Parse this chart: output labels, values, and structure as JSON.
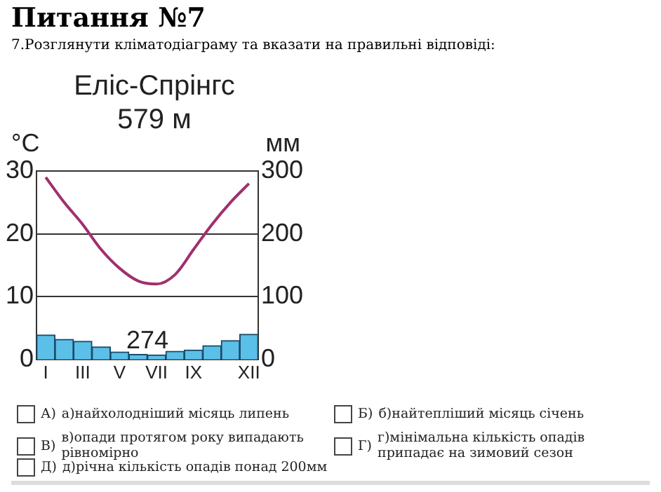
{
  "chart_data": {
    "type": "bar",
    "title": "Еліс-Спрінгс",
    "subtitle": "579 м",
    "ylabel": "°C",
    "y2label": "мм",
    "categories": [
      "I",
      null,
      "III",
      null,
      "V",
      null,
      "VII",
      null,
      "IX",
      null,
      null,
      "XII"
    ],
    "series": [
      {
        "axis": "y2",
        "color": "#5bc0e8",
        "values": [
          39,
          32,
          29,
          20,
          12,
          8,
          7,
          13,
          15,
          22,
          30,
          40
        ]
      },
      {
        "type": "line",
        "axis": "y",
        "color": "#a0306e",
        "values": [
          29,
          25,
          21.5,
          17.5,
          14.5,
          12.5,
          12,
          13.5,
          17.5,
          21.5,
          25,
          28
        ]
      }
    ],
    "ylim": [
      0,
      30
    ],
    "yticks": [
      0,
      10,
      20,
      30
    ],
    "y2lim": [
      0,
      300
    ],
    "y2ticks": [
      0,
      100,
      200,
      300
    ],
    "grid": "y",
    "marker": "none",
    "line_style": "solid",
    "annotations": [
      "Питання №7",
      "7.Розглянути кліматодіаграму та вказати на правильні відповіді:",
      "274",
      "А)",
      "а)найхолодніший місяць липень",
      "Б)",
      "б)найтепліший місяць січень",
      "В)",
      "в)опади протягом року випадають рівномірно",
      "Г)",
      "г)мінімальна кількість опадів припадає на зимовий сезон",
      "Д)",
      "д)річна кількість опадів понад 200мм"
    ]
  }
}
